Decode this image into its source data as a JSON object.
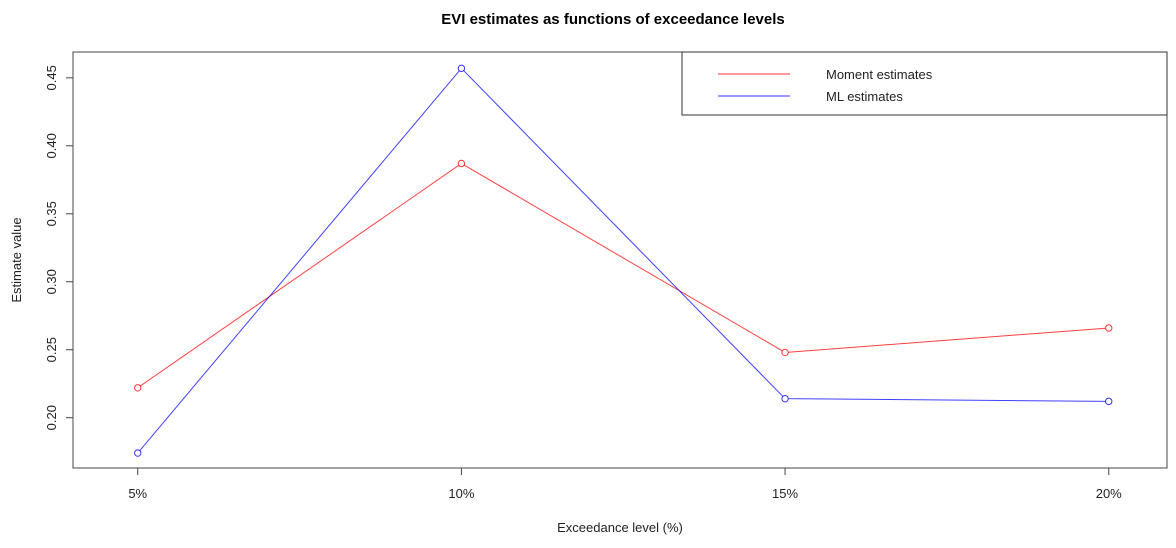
{
  "chart_data": {
    "type": "line",
    "title": "EVI estimates as functions of exceedance levels",
    "xlabel": "Exceedance level (%)",
    "ylabel": "Estimate value",
    "categories": [
      "5%",
      "10%",
      "15%",
      "20%"
    ],
    "x": [
      5,
      10,
      15,
      20
    ],
    "xlim": [
      4,
      20.9
    ],
    "ylim": [
      0.163,
      0.469
    ],
    "yticks": [
      0.2,
      0.25,
      0.3,
      0.35,
      0.4,
      0.45
    ],
    "ytick_labels": [
      "0.20",
      "0.25",
      "0.30",
      "0.35",
      "0.40",
      "0.45"
    ],
    "grid": false,
    "legend_position": "top-right",
    "series": [
      {
        "name": "Moment estimates",
        "color": "#ff0000",
        "values": [
          0.222,
          0.387,
          0.248,
          0.266
        ]
      },
      {
        "name": "ML estimates",
        "color": "#0000ff",
        "values": [
          0.174,
          0.457,
          0.214,
          0.212
        ]
      }
    ]
  }
}
